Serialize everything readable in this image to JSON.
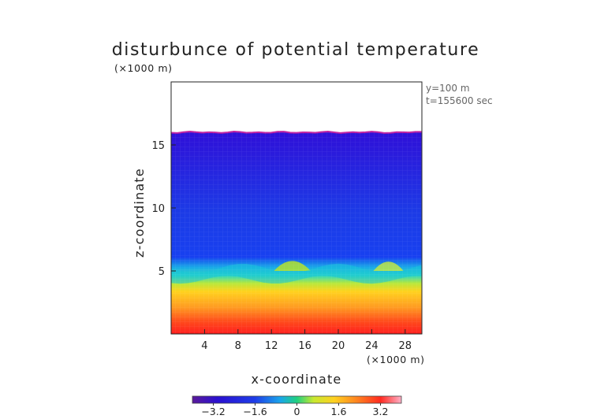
{
  "chart_data": {
    "type": "heatmap",
    "title": "disturbunce of potential temperature",
    "xlabel": "x-coordinate",
    "ylabel": "z-coordinate",
    "x_unit": "(×1000 m)",
    "y_unit": "(×1000 m)",
    "xlim": [
      0,
      30
    ],
    "ylim": [
      0,
      20
    ],
    "xticks": [
      4,
      8,
      12,
      16,
      20,
      24,
      28
    ],
    "yticks": [
      5,
      10,
      15
    ],
    "annotations": [
      "y=100 m",
      "t=155600 sec"
    ],
    "colorbar": {
      "ticks": [
        "−3.2",
        "−1.6",
        "0",
        "1.6",
        "3.2"
      ],
      "tick_values": [
        -3.2,
        -1.6,
        0,
        1.6,
        3.2
      ],
      "range": [
        -4,
        4
      ]
    },
    "field": {
      "top_of_data_z": 16,
      "layers": [
        {
          "z_range": [
            0,
            1
          ],
          "value": 3.6
        },
        {
          "z_range": [
            1,
            3
          ],
          "value": 2.4
        },
        {
          "z_range": [
            3,
            4.5
          ],
          "value": 1.4
        },
        {
          "z_range": [
            4.5,
            6
          ],
          "value": -0.6
        },
        {
          "z_range": [
            6,
            16
          ],
          "value": -2.8
        },
        {
          "z_range": [
            16,
            20
          ],
          "value": null
        }
      ]
    }
  }
}
